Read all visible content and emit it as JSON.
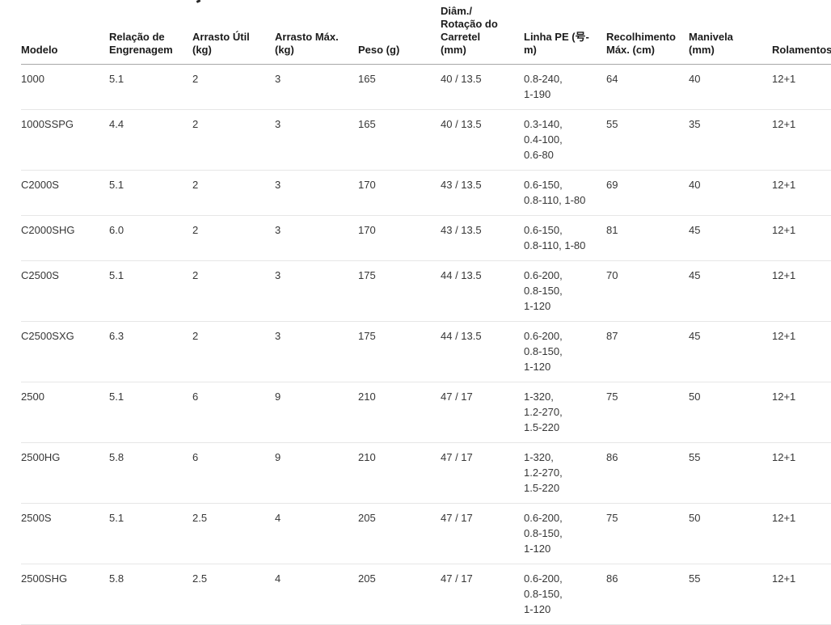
{
  "table": {
    "columns": [
      {
        "key": "modelo",
        "label": "Modelo"
      },
      {
        "key": "relacao",
        "label": "Relação de\nEngrenagem"
      },
      {
        "key": "arrasto_util",
        "label": "Arrasto Útil\n(kg)"
      },
      {
        "key": "arrasto_max",
        "label": "Arrasto Máx.\n(kg)"
      },
      {
        "key": "peso",
        "label": "Peso (g)"
      },
      {
        "key": "diam_rotacao",
        "label": "Diâm./\nRotação do\nCarretel\n(mm)"
      },
      {
        "key": "linha_pe",
        "label": "Linha PE (号-\nm)"
      },
      {
        "key": "recolhimento",
        "label": "Recolhimento\nMáx. (cm)"
      },
      {
        "key": "manivela",
        "label": "Manivela\n(mm)"
      },
      {
        "key": "rolamentos",
        "label": "Rolamentos"
      }
    ],
    "rows": [
      {
        "modelo": "1000",
        "relacao": "5.1",
        "arrasto_util": "2",
        "arrasto_max": "3",
        "peso": "165",
        "diam_rotacao": "40 / 13.5",
        "linha_pe": "0.8-240,\n1-190",
        "recolhimento": "64",
        "manivela": "40",
        "rolamentos": "12+1"
      },
      {
        "modelo": "1000SSPG",
        "relacao": "4.4",
        "arrasto_util": "2",
        "arrasto_max": "3",
        "peso": "165",
        "diam_rotacao": "40 / 13.5",
        "linha_pe": "0.3-140,\n0.4-100,\n0.6-80",
        "recolhimento": "55",
        "manivela": "35",
        "rolamentos": "12+1"
      },
      {
        "modelo": "C2000S",
        "relacao": "5.1",
        "arrasto_util": "2",
        "arrasto_max": "3",
        "peso": "170",
        "diam_rotacao": "43 / 13.5",
        "linha_pe": "0.6-150,\n0.8-110, 1-80",
        "recolhimento": "69",
        "manivela": "40",
        "rolamentos": "12+1"
      },
      {
        "modelo": "C2000SHG",
        "relacao": "6.0",
        "arrasto_util": "2",
        "arrasto_max": "3",
        "peso": "170",
        "diam_rotacao": "43 / 13.5",
        "linha_pe": "0.6-150,\n0.8-110, 1-80",
        "recolhimento": "81",
        "manivela": "45",
        "rolamentos": "12+1"
      },
      {
        "modelo": "C2500S",
        "relacao": "5.1",
        "arrasto_util": "2",
        "arrasto_max": "3",
        "peso": "175",
        "diam_rotacao": "44 / 13.5",
        "linha_pe": "0.6-200,\n0.8-150,\n1-120",
        "recolhimento": "70",
        "manivela": "45",
        "rolamentos": "12+1"
      },
      {
        "modelo": "C2500SXG",
        "relacao": "6.3",
        "arrasto_util": "2",
        "arrasto_max": "3",
        "peso": "175",
        "diam_rotacao": "44 / 13.5",
        "linha_pe": "0.6-200,\n0.8-150,\n1-120",
        "recolhimento": "87",
        "manivela": "45",
        "rolamentos": "12+1"
      },
      {
        "modelo": "2500",
        "relacao": "5.1",
        "arrasto_util": "6",
        "arrasto_max": "9",
        "peso": "210",
        "diam_rotacao": "47 / 17",
        "linha_pe": "1-320,\n1.2-270,\n1.5-220",
        "recolhimento": "75",
        "manivela": "50",
        "rolamentos": "12+1"
      },
      {
        "modelo": "2500HG",
        "relacao": "5.8",
        "arrasto_util": "6",
        "arrasto_max": "9",
        "peso": "210",
        "diam_rotacao": "47 / 17",
        "linha_pe": "1-320,\n1.2-270,\n1.5-220",
        "recolhimento": "86",
        "manivela": "55",
        "rolamentos": "12+1"
      },
      {
        "modelo": "2500S",
        "relacao": "5.1",
        "arrasto_util": "2.5",
        "arrasto_max": "4",
        "peso": "205",
        "diam_rotacao": "47 / 17",
        "linha_pe": "0.6-200,\n0.8-150,\n1-120",
        "recolhimento": "75",
        "manivela": "50",
        "rolamentos": "12+1"
      },
      {
        "modelo": "2500SHG",
        "relacao": "5.8",
        "arrasto_util": "2.5",
        "arrasto_max": "4",
        "peso": "205",
        "diam_rotacao": "47 / 17",
        "linha_pe": "0.6-200,\n0.8-150,\n1-120",
        "recolhimento": "86",
        "manivela": "55",
        "rolamentos": "12+1"
      }
    ]
  }
}
